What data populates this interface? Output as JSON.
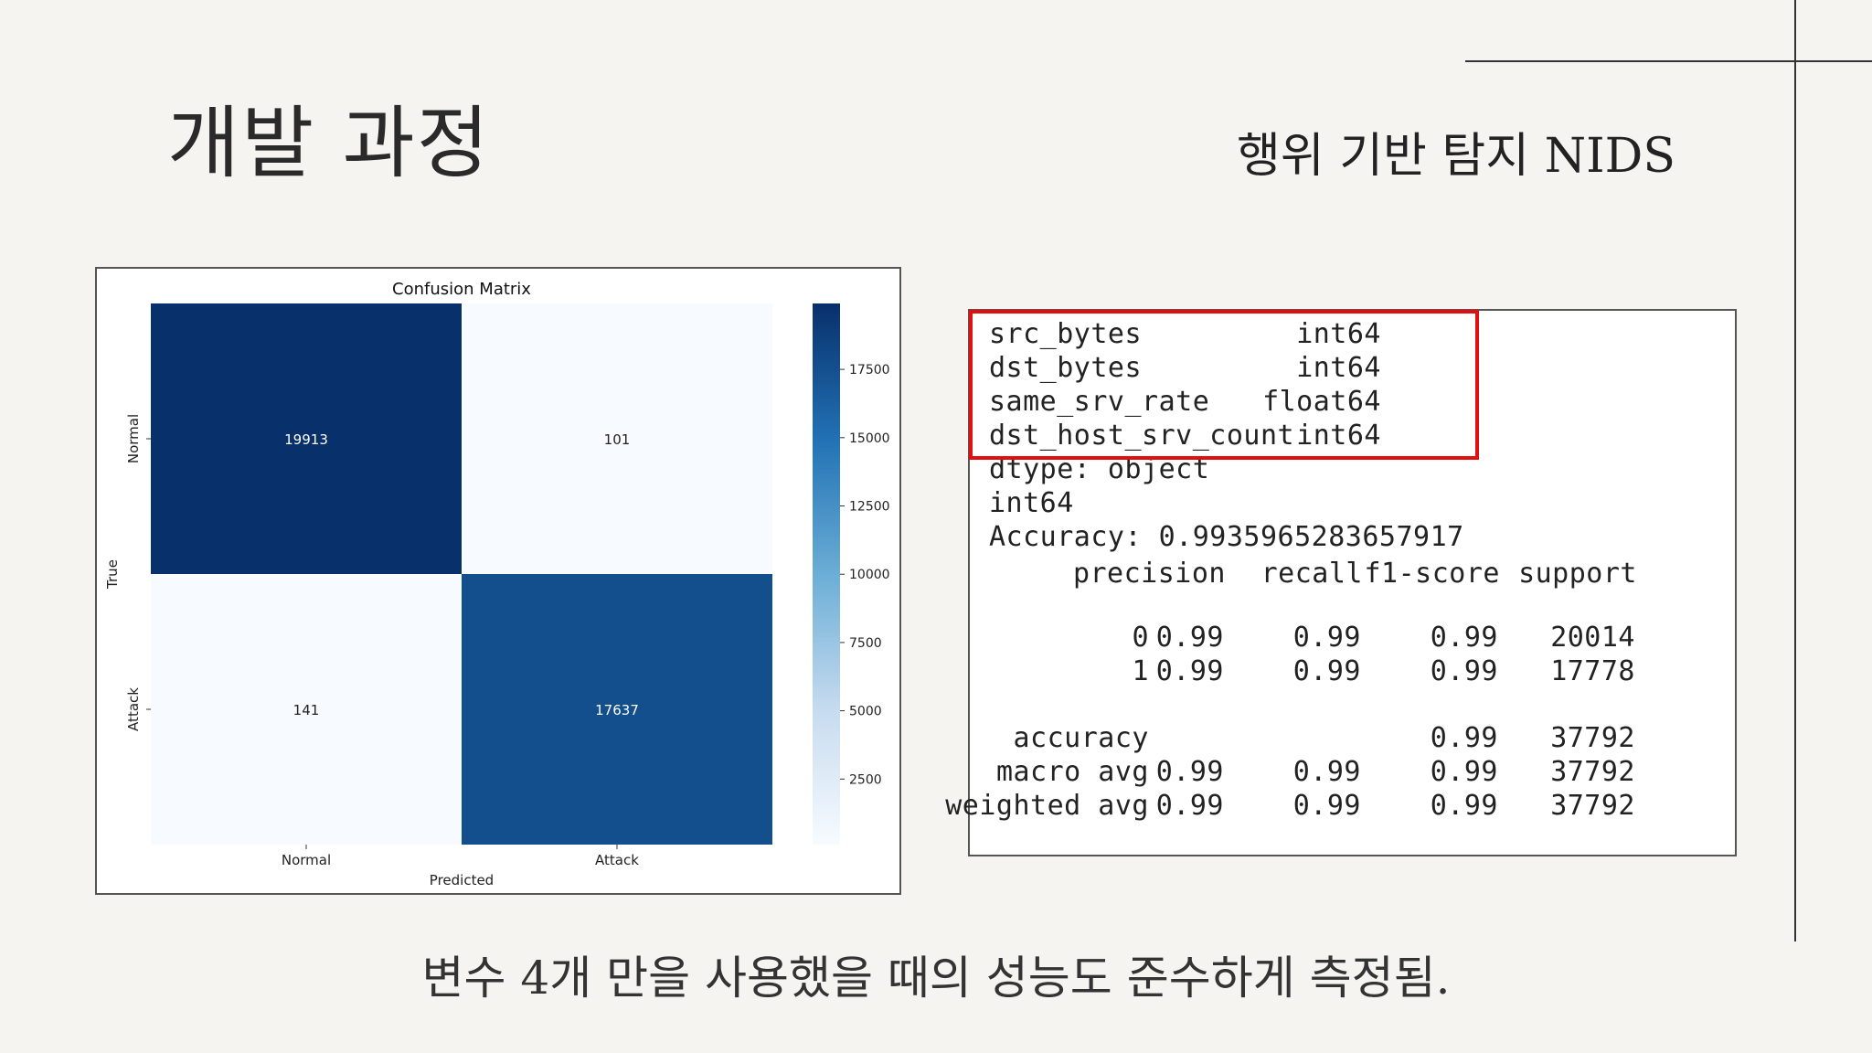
{
  "slide": {
    "title": "개발 과정",
    "subtitle": "행위 기반 탐지 NIDS",
    "caption": "변수 4개 만을 사용했을 때의 성능도 준수하게 측정됨."
  },
  "chart_data": {
    "type": "heatmap",
    "title": "Confusion Matrix",
    "xlabel": "Predicted",
    "ylabel": "True",
    "x_categories": [
      "Normal",
      "Attack"
    ],
    "y_categories": [
      "Normal",
      "Attack"
    ],
    "values": [
      [
        19913,
        101
      ],
      [
        141,
        17637
      ]
    ],
    "colorbar": {
      "min": 101,
      "max": 19913,
      "ticks": [
        2500,
        5000,
        7500,
        10000,
        12500,
        15000,
        17500
      ],
      "colormap": "Blues"
    }
  },
  "report": {
    "features": [
      {
        "name": "src_bytes",
        "dtype": "int64"
      },
      {
        "name": "dst_bytes",
        "dtype": "int64"
      },
      {
        "name": "same_srv_rate",
        "dtype": "float64"
      },
      {
        "name": "dst_host_srv_count",
        "dtype": "int64"
      }
    ],
    "dtype_line": "dtype: object",
    "int_line": "int64",
    "accuracy_line": "Accuracy: 0.9935965283657917",
    "headers": [
      "precision",
      "recall",
      "f1-score",
      "support"
    ],
    "rows": [
      {
        "label": "0",
        "precision": "0.99",
        "recall": "0.99",
        "f1": "0.99",
        "support": "20014"
      },
      {
        "label": "1",
        "precision": "0.99",
        "recall": "0.99",
        "f1": "0.99",
        "support": "17778"
      }
    ],
    "summary": [
      {
        "label": "accuracy",
        "precision": "",
        "recall": "",
        "f1": "0.99",
        "support": "37792"
      },
      {
        "label": "macro avg",
        "precision": "0.99",
        "recall": "0.99",
        "f1": "0.99",
        "support": "37792"
      },
      {
        "label": "weighted avg",
        "precision": "0.99",
        "recall": "0.99",
        "f1": "0.99",
        "support": "37792"
      }
    ]
  }
}
